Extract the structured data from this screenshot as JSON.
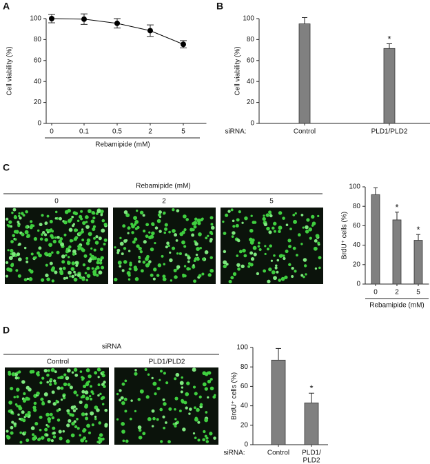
{
  "figure": {
    "panels": [
      "A",
      "B",
      "C",
      "D"
    ],
    "images_c": {
      "header": "Rebamipide (mM)",
      "labels": [
        "0",
        "2",
        "5"
      ]
    },
    "images_d": {
      "header": "siRNA",
      "labels": [
        "Control",
        "PLD1/PLD2"
      ]
    }
  },
  "chart_data": [
    {
      "type": "line",
      "ylabel": "Cell viability (%)",
      "xlabel": "Rebamipide (mM)",
      "categories": [
        "0",
        "0.1",
        "0.5",
        "2",
        "5"
      ],
      "values": [
        100,
        99.5,
        95.5,
        88.5,
        75.5
      ],
      "errors": [
        4,
        5,
        4.5,
        5.5,
        3.5
      ],
      "color": "#000000",
      "ylim": [
        0,
        100
      ],
      "yticks": [
        0,
        20,
        40,
        60,
        80,
        100
      ]
    },
    {
      "type": "bar",
      "ylabel": "Cell viability (%)",
      "xprefix": "siRNA:",
      "categories": [
        "Control",
        "PLD1/PLD2"
      ],
      "values": [
        95,
        71.5
      ],
      "errors": [
        6,
        4.5
      ],
      "significance": [
        null,
        "*"
      ],
      "color": "#808080",
      "ylim": [
        0,
        100
      ],
      "yticks": [
        0,
        20,
        40,
        60,
        80,
        100
      ]
    },
    {
      "type": "bar",
      "ylabel": "BrdU⁺ cells (%)",
      "xlabel": "Rebamipide (mM)",
      "categories": [
        "0",
        "2",
        "5"
      ],
      "values": [
        92,
        66,
        45
      ],
      "errors": [
        7,
        8,
        6
      ],
      "significance": [
        null,
        "*",
        "*"
      ],
      "color": "#808080",
      "ylim": [
        0,
        100
      ],
      "yticks": [
        0,
        20,
        40,
        60,
        80,
        100
      ]
    },
    {
      "type": "bar",
      "ylabel": "BrdU⁺ cells (%)",
      "xprefix": "siRNA:",
      "categories": [
        [
          "Control"
        ],
        [
          "PLD1/",
          "PLD2"
        ]
      ],
      "values": [
        87,
        43
      ],
      "errors": [
        12,
        10
      ],
      "significance": [
        null,
        "*"
      ],
      "color": "#808080",
      "ylim": [
        0,
        100
      ],
      "yticks": [
        0,
        20,
        40,
        60,
        80,
        100
      ]
    }
  ]
}
